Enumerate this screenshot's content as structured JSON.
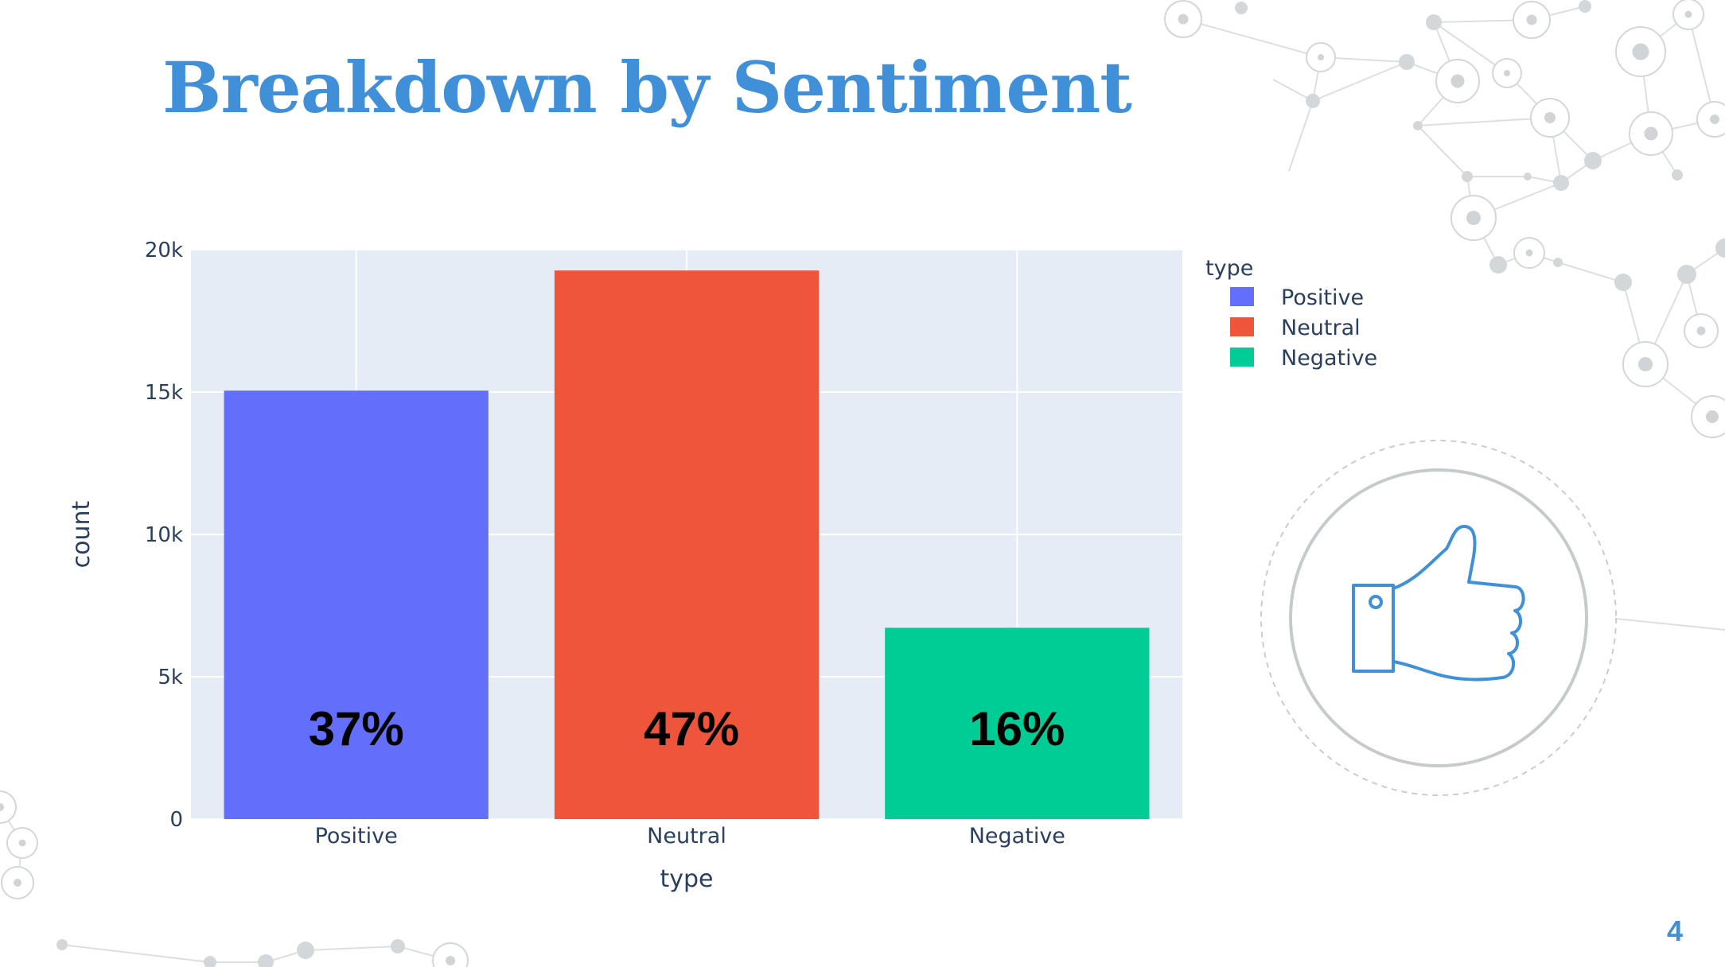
{
  "slide": {
    "title": "Breakdown by Sentiment",
    "page_number": "4",
    "icon": "thumbs-up-icon",
    "accent_color": "#3f8fd9"
  },
  "chart_data": {
    "type": "bar",
    "xlabel": "type",
    "ylabel": "count",
    "categories": [
      "Positive",
      "Neutral",
      "Negative"
    ],
    "values": [
      15050,
      19270,
      6720
    ],
    "bar_labels": [
      "37%",
      "47%",
      "16%"
    ],
    "colors": [
      "#636efa",
      "#ef553b",
      "#00cc96"
    ],
    "ylim": [
      0,
      20000
    ],
    "yticks": [
      0,
      5000,
      10000,
      15000,
      20000
    ],
    "ytick_labels": [
      "0",
      "5k",
      "10k",
      "15k",
      "20k"
    ],
    "grid": true,
    "plot_background": "#e5ecf6",
    "legend": {
      "title": "type",
      "placement": "top-right",
      "entries": [
        "Positive",
        "Neutral",
        "Negative"
      ]
    }
  }
}
